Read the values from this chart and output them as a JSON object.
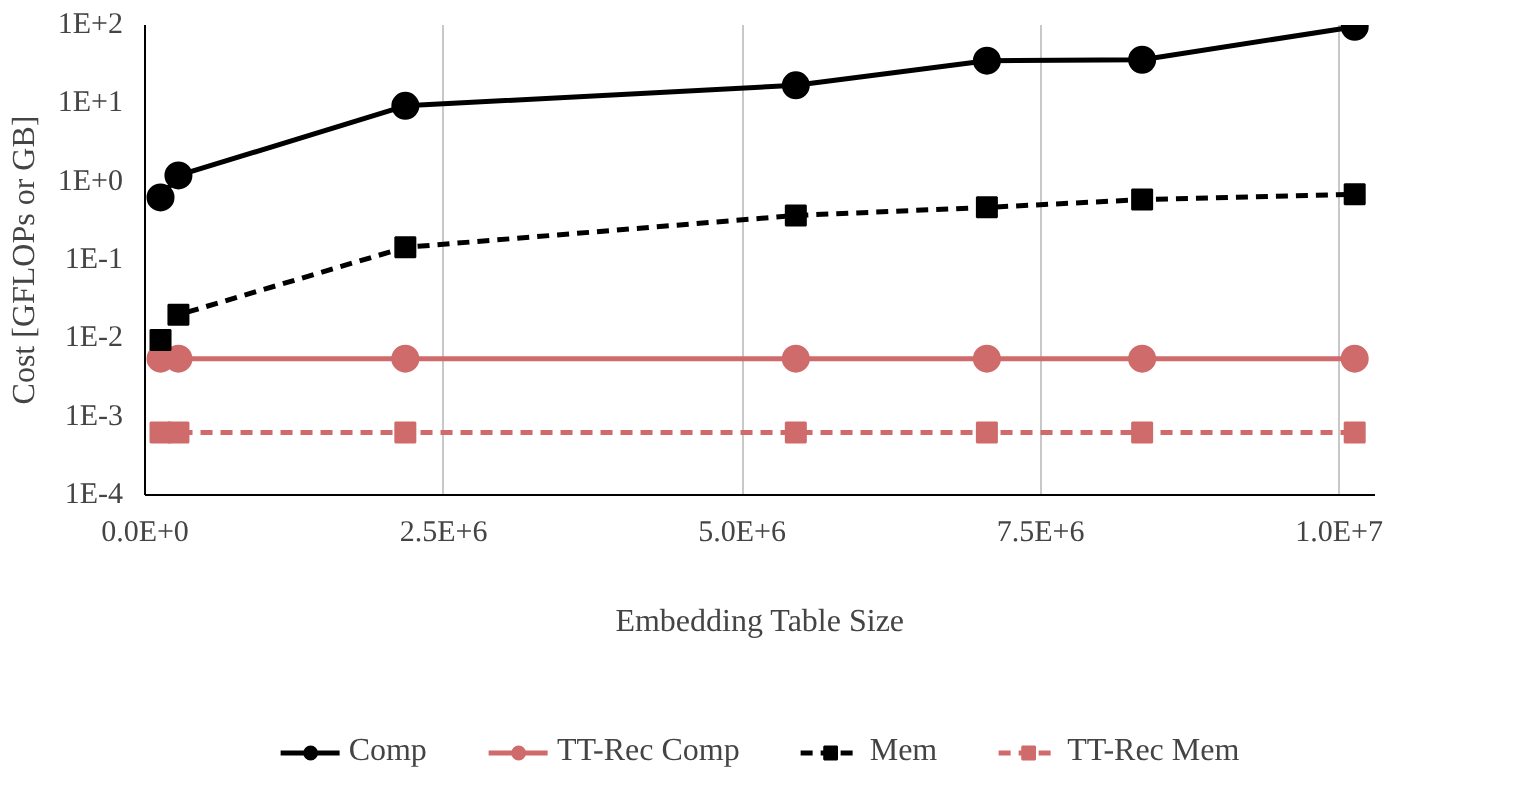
{
  "chart_data": {
    "type": "line",
    "xlabel": "Embedding Table Size",
    "ylabel": "Cost [GFLOPs or GB]",
    "log": "y",
    "grid": "x",
    "legend": "bottom",
    "x": [
      130000,
      280000,
      2180000,
      5450000,
      7050000,
      8350000,
      10130000
    ],
    "xlim": [
      0,
      10300000
    ],
    "xticks": [
      {
        "value": 0,
        "label": "0.0E+0"
      },
      {
        "value": 2500000,
        "label": "2.5E+6"
      },
      {
        "value": 5000000,
        "label": "5.0E+6"
      },
      {
        "value": 7500000,
        "label": "7.5E+6"
      },
      {
        "value": 10000000,
        "label": "1.0E+7"
      }
    ],
    "ylim": [
      0.0001,
      100
    ],
    "yticks": [
      {
        "value": 0.0001,
        "label": "1E-4"
      },
      {
        "value": 0.001,
        "label": "1E-3"
      },
      {
        "value": 0.01,
        "label": "1E-2"
      },
      {
        "value": 0.1,
        "label": "1E-1"
      },
      {
        "value": 1,
        "label": "1E+0"
      },
      {
        "value": 10,
        "label": "1E+1"
      },
      {
        "value": 100,
        "label": "1E+2"
      }
    ],
    "series": [
      {
        "name": "Comp",
        "color": "#000000",
        "marker": "circle",
        "line_style": "solid",
        "values": [
          0.63,
          1.2,
          9.3,
          17,
          35,
          36,
          95
        ]
      },
      {
        "name": "TT-Rec Comp",
        "color": "#d06b6b",
        "marker": "circle",
        "line_style": "solid",
        "values": [
          0.0055,
          0.0055,
          0.0055,
          0.0055,
          0.0055,
          0.0055,
          0.0055
        ]
      },
      {
        "name": "Mem",
        "color": "#000000",
        "marker": "square",
        "line_style": "dashed",
        "values": [
          0.0095,
          0.02,
          0.145,
          0.37,
          0.47,
          0.59,
          0.69
        ]
      },
      {
        "name": "TT-Rec Mem",
        "color": "#d06b6b",
        "marker": "square",
        "line_style": "dashed",
        "values": [
          0.00063,
          0.00063,
          0.00063,
          0.00063,
          0.00063,
          0.00063,
          0.00063
        ]
      }
    ]
  }
}
